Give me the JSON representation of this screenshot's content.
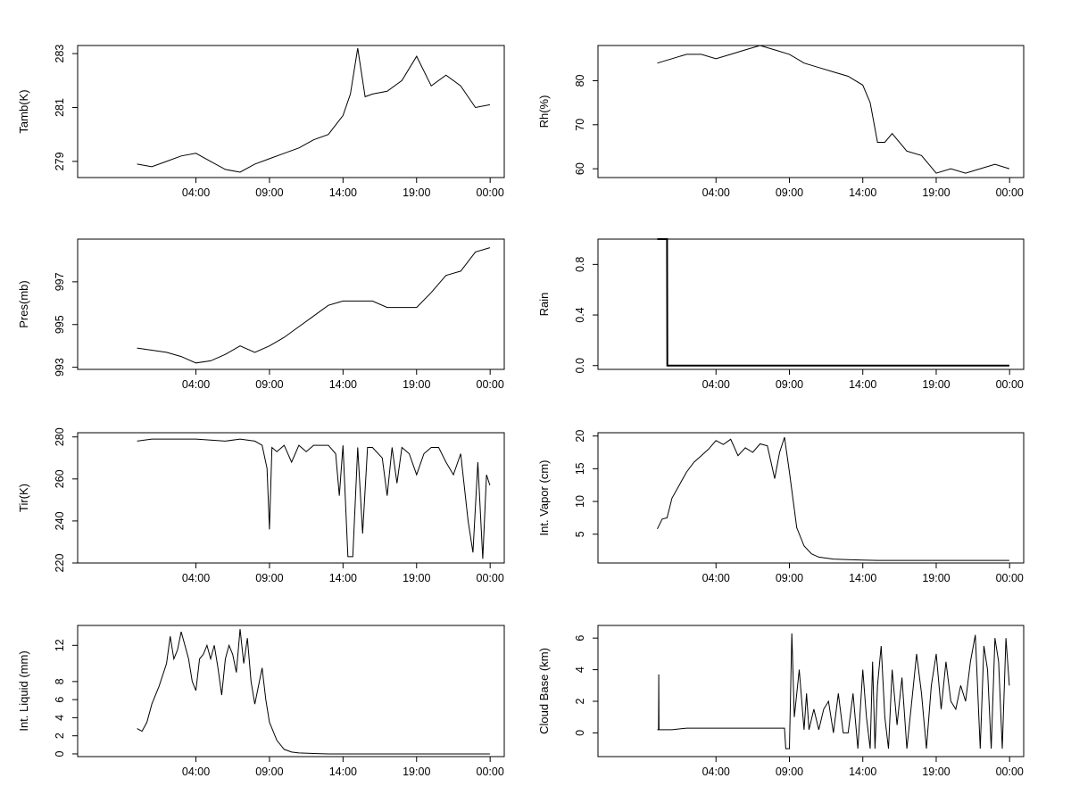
{
  "time_ticks": [
    "04:00",
    "09:00",
    "14:00",
    "19:00",
    "00:00"
  ],
  "chart_data": [
    {
      "type": "line",
      "ylabel": "Tamb(K)",
      "yticks": [
        "279",
        "281",
        "283"
      ],
      "ylim": [
        278.4,
        283.3
      ],
      "x": [
        "00:00",
        "01:00",
        "02:00",
        "03:00",
        "04:00",
        "05:00",
        "06:00",
        "07:00",
        "08:00",
        "09:00",
        "10:00",
        "11:00",
        "12:00",
        "13:00",
        "14:00",
        "14:30",
        "15:00",
        "15:30",
        "16:00",
        "17:00",
        "18:00",
        "19:00",
        "20:00",
        "21:00",
        "22:00",
        "23:00",
        "23:59"
      ],
      "values": [
        278.9,
        278.8,
        279.0,
        279.2,
        279.3,
        279.0,
        278.7,
        278.6,
        278.9,
        279.1,
        279.3,
        279.5,
        279.8,
        280.0,
        280.7,
        281.5,
        283.2,
        281.4,
        281.5,
        281.6,
        282.0,
        282.9,
        281.8,
        282.2,
        281.8,
        281.0,
        281.1
      ]
    },
    {
      "type": "line",
      "ylabel": "Rh(%)",
      "yticks": [
        "60",
        "70",
        "80"
      ],
      "ylim": [
        58,
        88
      ],
      "x": [
        "00:00",
        "01:00",
        "02:00",
        "03:00",
        "04:00",
        "05:00",
        "06:00",
        "07:00",
        "08:00",
        "09:00",
        "10:00",
        "11:00",
        "12:00",
        "13:00",
        "14:00",
        "14:30",
        "15:00",
        "15:30",
        "16:00",
        "17:00",
        "18:00",
        "19:00",
        "20:00",
        "21:00",
        "22:00",
        "23:00",
        "23:59"
      ],
      "values": [
        84,
        85,
        86,
        86,
        85,
        86,
        87,
        88,
        87,
        86,
        84,
        83,
        82,
        81,
        79,
        75,
        66,
        66,
        68,
        64,
        63,
        59,
        60,
        59,
        60,
        61,
        60
      ]
    },
    {
      "type": "line",
      "ylabel": "Pres(mb)",
      "yticks": [
        "993",
        "995",
        "997"
      ],
      "ylim": [
        992.9,
        999.0
      ],
      "x": [
        "00:00",
        "01:00",
        "02:00",
        "03:00",
        "04:00",
        "05:00",
        "06:00",
        "07:00",
        "08:00",
        "09:00",
        "10:00",
        "11:00",
        "12:00",
        "13:00",
        "14:00",
        "15:00",
        "16:00",
        "17:00",
        "18:00",
        "19:00",
        "20:00",
        "21:00",
        "22:00",
        "23:00",
        "23:59"
      ],
      "values": [
        993.9,
        993.8,
        993.7,
        993.5,
        993.2,
        993.3,
        993.6,
        994.0,
        993.7,
        994.0,
        994.4,
        994.9,
        995.4,
        995.9,
        996.1,
        996.1,
        996.1,
        995.8,
        995.8,
        995.8,
        996.5,
        997.3,
        997.5,
        998.4,
        998.6
      ]
    },
    {
      "type": "line",
      "ylabel": "Rain",
      "yticks": [
        "0.0",
        "0.4",
        "0.8"
      ],
      "ylim": [
        -0.03,
        1.0
      ],
      "x": [
        "00:00",
        "00:40",
        "00:41",
        "23:59"
      ],
      "values": [
        1,
        1,
        0,
        0
      ]
    },
    {
      "type": "line",
      "ylabel": "Tir(K)",
      "yticks": [
        "220",
        "240",
        "260",
        "280"
      ],
      "ylim": [
        220,
        282
      ],
      "x": [
        "00:00",
        "01:00",
        "02:00",
        "03:00",
        "04:00",
        "05:00",
        "06:00",
        "07:00",
        "08:00",
        "08:30",
        "08:50",
        "09:00",
        "09:10",
        "09:30",
        "10:00",
        "10:30",
        "11:00",
        "11:30",
        "12:00",
        "13:00",
        "13:30",
        "13:45",
        "14:00",
        "14:20",
        "14:40",
        "15:00",
        "15:20",
        "15:40",
        "16:00",
        "16:40",
        "17:00",
        "17:20",
        "17:40",
        "18:00",
        "18:30",
        "19:00",
        "19:30",
        "20:00",
        "20:30",
        "21:00",
        "21:30",
        "22:00",
        "22:30",
        "22:50",
        "23:10",
        "23:30",
        "23:45",
        "23:59"
      ],
      "values": [
        278,
        279,
        279,
        279,
        279,
        278.5,
        278,
        279,
        278,
        276,
        265,
        236,
        275,
        273,
        276,
        268,
        276,
        273,
        276,
        276,
        272,
        252,
        276,
        223,
        223,
        275,
        234,
        275,
        275,
        270,
        252,
        275,
        258,
        275,
        272,
        262,
        272,
        275,
        275,
        268,
        262,
        272,
        240,
        225,
        268,
        222,
        262,
        257
      ]
    },
    {
      "type": "line",
      "ylabel": "Int. Vapor (cm)",
      "yticks": [
        "5",
        "10",
        "15",
        "20"
      ],
      "ylim": [
        0.6,
        20.5
      ],
      "x": [
        "00:00",
        "00:20",
        "00:40",
        "01:00",
        "01:30",
        "02:00",
        "02:30",
        "03:00",
        "03:30",
        "04:00",
        "04:30",
        "05:00",
        "05:30",
        "06:00",
        "06:30",
        "07:00",
        "07:30",
        "08:00",
        "08:20",
        "08:40",
        "09:00",
        "09:30",
        "10:00",
        "10:30",
        "11:00",
        "12:00",
        "13:00",
        "14:00",
        "15:00",
        "16:00",
        "17:00",
        "18:00",
        "19:00",
        "20:00",
        "21:00",
        "22:00",
        "23:00",
        "23:59"
      ],
      "values": [
        5.8,
        7.3,
        7.5,
        10.5,
        12.5,
        14.5,
        16,
        17,
        18,
        19.3,
        18.7,
        19.5,
        17,
        18.2,
        17.5,
        18.8,
        18.5,
        13.5,
        17.5,
        19.8,
        14.5,
        6,
        3.2,
        2.0,
        1.5,
        1.2,
        1.1,
        1.05,
        1.0,
        1.0,
        1.0,
        1.0,
        1.0,
        1.0,
        1.0,
        1.0,
        1.0,
        1.0
      ]
    },
    {
      "type": "line",
      "ylabel": "Int. Liquid (mm)",
      "yticks": [
        "0",
        "2",
        "4",
        "6",
        "8",
        "12"
      ],
      "ylim": [
        -0.3,
        14.2
      ],
      "x": [
        "00:00",
        "00:20",
        "00:40",
        "01:00",
        "01:30",
        "02:00",
        "02:15",
        "02:30",
        "02:45",
        "03:00",
        "03:15",
        "03:30",
        "03:45",
        "04:00",
        "04:15",
        "04:30",
        "04:45",
        "05:00",
        "05:15",
        "05:30",
        "05:45",
        "06:00",
        "06:15",
        "06:30",
        "06:45",
        "07:00",
        "07:15",
        "07:30",
        "07:45",
        "08:00",
        "08:15",
        "08:30",
        "08:45",
        "09:00",
        "09:30",
        "10:00",
        "10:30",
        "11:00",
        "12:00",
        "13:00",
        "14:00",
        "16:00",
        "18:00",
        "20:00",
        "22:00",
        "23:59"
      ],
      "values": [
        2.8,
        2.5,
        3.5,
        5.5,
        7.5,
        10,
        13,
        10.5,
        11.5,
        13.5,
        12,
        10.5,
        8,
        7,
        10.5,
        11,
        12,
        10.5,
        12,
        9.5,
        6.5,
        10.5,
        12,
        11,
        9,
        13.8,
        10,
        12.8,
        8,
        5.5,
        7.5,
        9.5,
        6,
        3.5,
        1.5,
        0.5,
        0.2,
        0.1,
        0.05,
        0,
        0,
        0,
        0,
        0,
        0,
        0
      ]
    },
    {
      "type": "line",
      "ylabel": "Cloud Base (km)",
      "yticks": [
        "0",
        "2",
        "4",
        "6"
      ],
      "ylim": [
        -1.5,
        6.8
      ],
      "x": [
        "00:00",
        "00:05",
        "00:06",
        "00:07",
        "01:00",
        "02:00",
        "03:00",
        "04:00",
        "05:00",
        "06:00",
        "07:00",
        "08:00",
        "08:30",
        "08:40",
        "08:45",
        "08:50",
        "09:00",
        "09:10",
        "09:20",
        "09:40",
        "10:00",
        "10:10",
        "10:20",
        "10:40",
        "11:00",
        "11:20",
        "11:40",
        "12:00",
        "12:20",
        "12:40",
        "13:00",
        "13:20",
        "13:40",
        "14:00",
        "14:15",
        "14:30",
        "14:40",
        "14:50",
        "15:00",
        "15:15",
        "15:30",
        "15:45",
        "16:00",
        "16:20",
        "16:40",
        "17:00",
        "17:20",
        "17:40",
        "18:00",
        "18:20",
        "18:40",
        "19:00",
        "19:20",
        "19:40",
        "20:00",
        "20:20",
        "20:40",
        "21:00",
        "21:20",
        "21:40",
        "22:00",
        "22:15",
        "22:30",
        "22:45",
        "23:00",
        "23:15",
        "23:30",
        "23:45",
        "23:59"
      ],
      "values": [
        0.2,
        0.2,
        3.7,
        0.2,
        0.2,
        0.3,
        0.3,
        0.3,
        0.3,
        0.3,
        0.3,
        0.3,
        0.3,
        0.3,
        -1.0,
        -1.0,
        -1.0,
        6.3,
        1.0,
        4.0,
        0.2,
        2.5,
        0.2,
        1.5,
        0.2,
        1.5,
        2.0,
        0.0,
        2.5,
        0.0,
        0.0,
        2.5,
        -1.0,
        4.0,
        1.0,
        -1.0,
        4.5,
        -1.0,
        3.0,
        5.5,
        1.0,
        -1.0,
        4.0,
        0.5,
        3.5,
        -1.0,
        2.0,
        5.0,
        2.5,
        -1.0,
        3.0,
        5.0,
        1.5,
        4.5,
        2.0,
        1.5,
        3.0,
        2.0,
        4.5,
        6.2,
        -1.0,
        5.5,
        4.0,
        -1.0,
        6.0,
        4.5,
        -1.0,
        6.0,
        3.0
      ]
    }
  ]
}
